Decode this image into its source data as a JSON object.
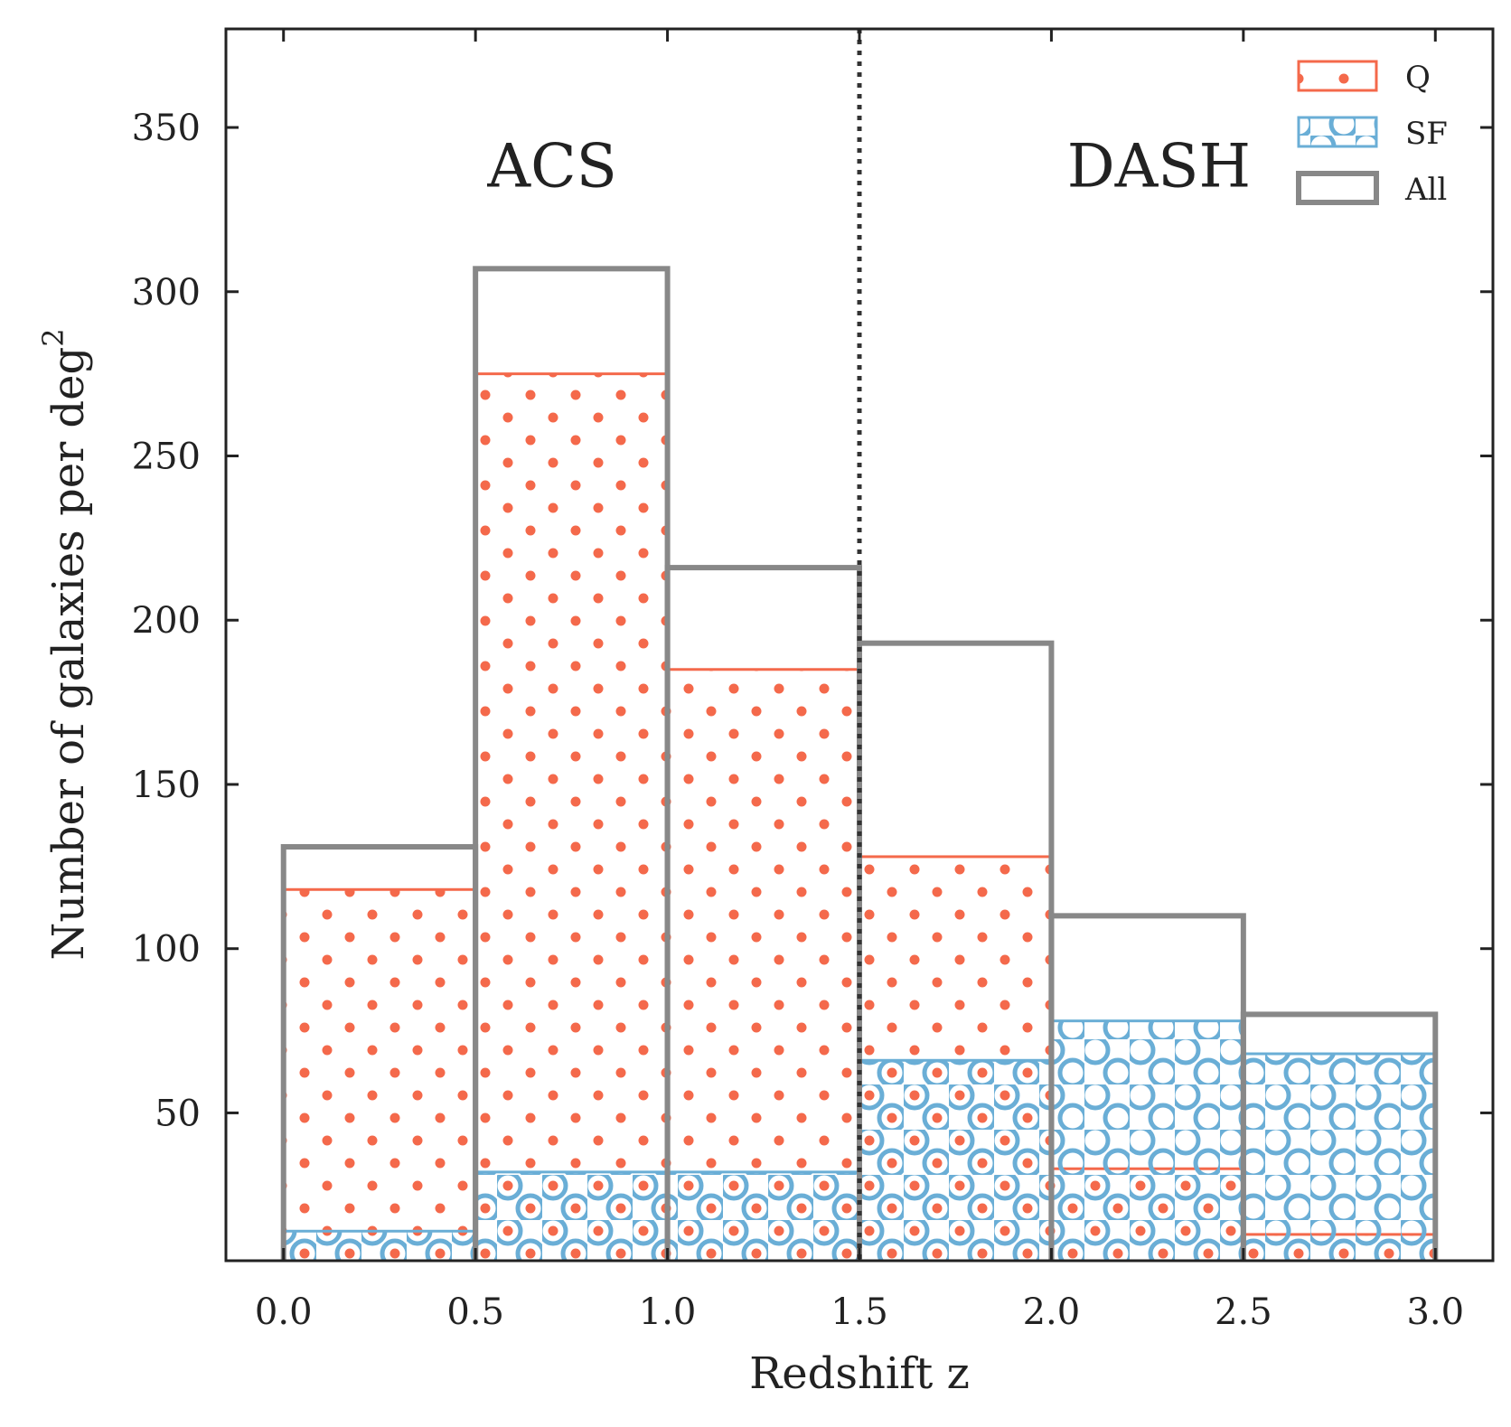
{
  "chart_data": {
    "type": "histogram",
    "xlabel": "Redshift z",
    "ylabel": "Number of galaxies per deg",
    "ylabel_superscript": "2",
    "xlim": [
      -0.15,
      3.15
    ],
    "ylim": [
      5,
      380
    ],
    "xticks": [
      0.0,
      0.5,
      1.0,
      1.5,
      2.0,
      2.5,
      3.0
    ],
    "xtick_labels": [
      "0.0",
      "0.5",
      "1.0",
      "1.5",
      "2.0",
      "2.5",
      "3.0"
    ],
    "yticks": [
      50,
      100,
      150,
      200,
      250,
      300,
      350
    ],
    "ytick_labels": [
      "50",
      "100",
      "150",
      "200",
      "250",
      "300",
      "350"
    ],
    "bin_edges": [
      0.0,
      0.5,
      1.0,
      1.5,
      2.0,
      2.5,
      3.0
    ],
    "series": [
      {
        "name": "Q",
        "color": "#f4694b",
        "hatch": "dots",
        "values": [
          118,
          275,
          185,
          128,
          33,
          13
        ]
      },
      {
        "name": "SF",
        "color": "#6aaed6",
        "hatch": "circles",
        "values": [
          14,
          32,
          32,
          66,
          78,
          68
        ]
      },
      {
        "name": "All",
        "color": "#888888",
        "hatch": "none",
        "values": [
          131,
          307,
          216,
          193,
          110,
          80
        ]
      }
    ],
    "divider": {
      "x": 1.5,
      "style": "dotted",
      "color": "#333333"
    },
    "region_labels": [
      {
        "text": "ACS",
        "x": 0.7,
        "y": 332
      },
      {
        "text": "DASH",
        "x": 2.28,
        "y": 332
      }
    ],
    "legend_position": "top-right"
  }
}
